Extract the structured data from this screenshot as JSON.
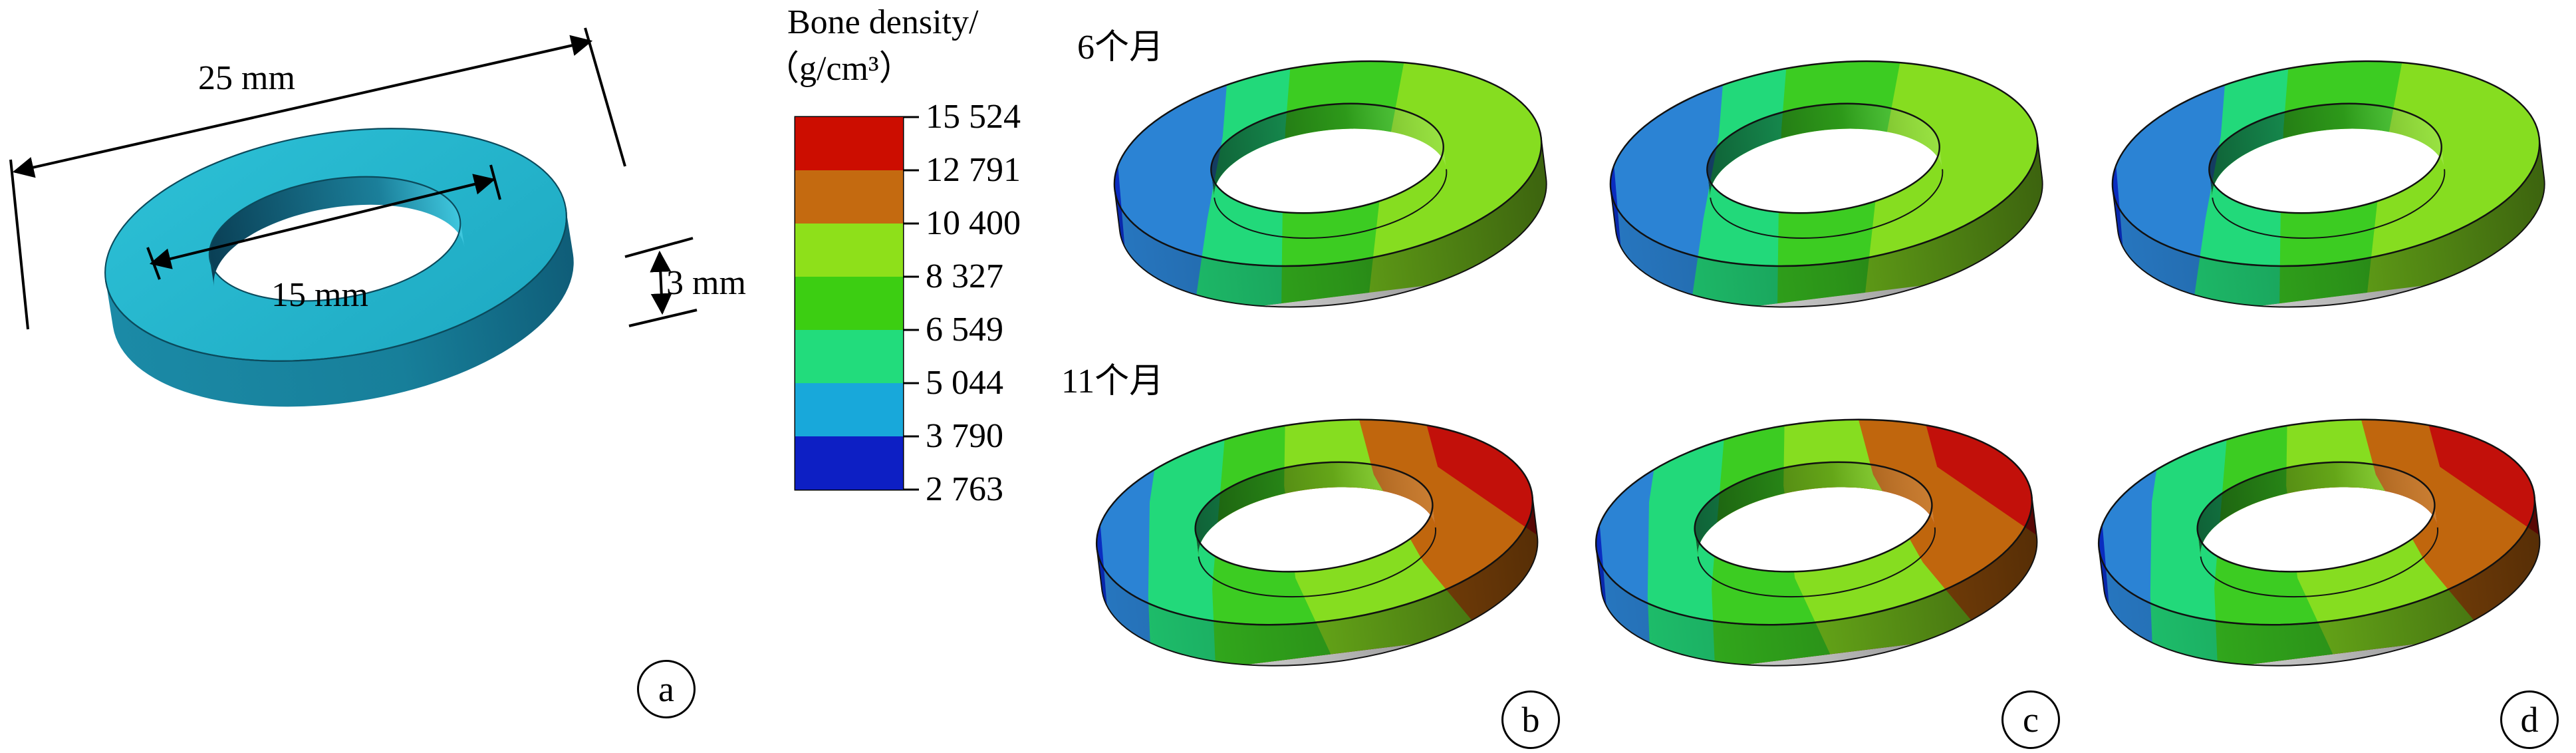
{
  "panel_a": {
    "outer_diameter": "25 mm",
    "inner_diameter": "15 mm",
    "thickness": "3 mm",
    "letter": "a"
  },
  "legend": {
    "title_line1": "Bone density/",
    "title_line2": "（g/cm³）",
    "ticks": [
      "15 524",
      "12 791",
      "10 400",
      "8 327",
      "6 549",
      "5 044",
      "3 790",
      "2 763"
    ],
    "colors": [
      "#cc0d00",
      "#c46a10",
      "#8ee01a",
      "#3cce12",
      "#22dc7c",
      "#18a8da",
      "#0d1fc4"
    ]
  },
  "rows": {
    "top": "6个月",
    "bottom": "11个月"
  },
  "panel_letters": [
    "b",
    "c",
    "d"
  ],
  "density_palette": {
    "deep_blue": "#0a2cc0",
    "blue": "#2b83d4",
    "cyan": "#1aa8d9",
    "green_aqua": "#22d97a",
    "green": "#3ccc22",
    "light_green": "#86dd20",
    "orange": "#c0660d",
    "red": "#c2100a",
    "model_cyan": "#23b6cc"
  }
}
